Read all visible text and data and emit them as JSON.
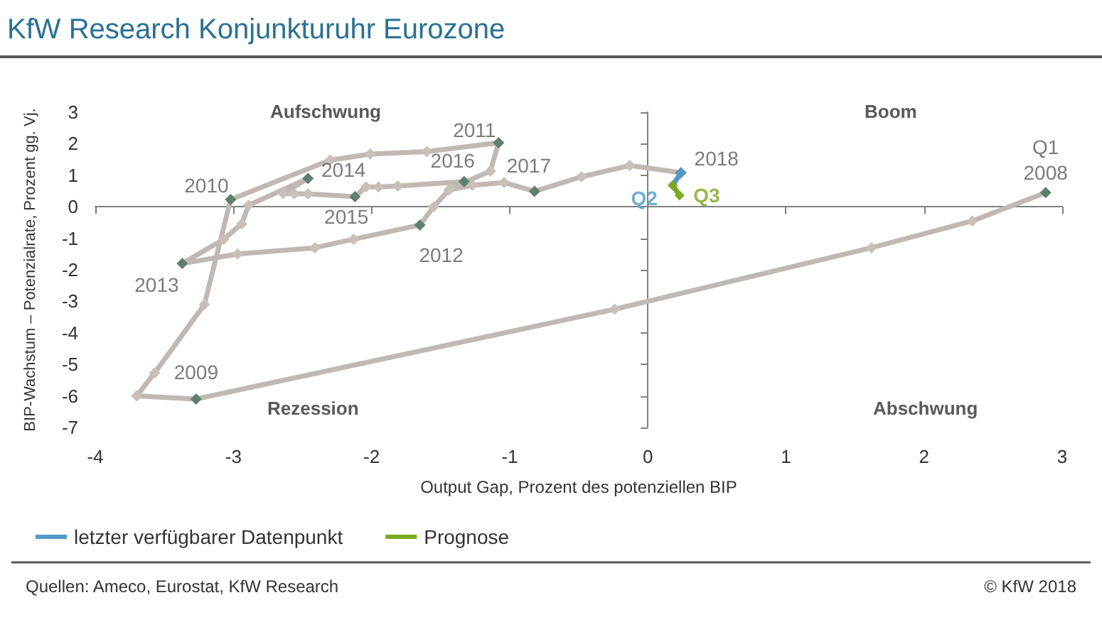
{
  "chart_data": {
    "type": "line",
    "title": "KfW Research Konjunkturuhr Eurozone",
    "xlabel": "Output Gap, Prozent des potenziellen BIP",
    "ylabel": "BIP-Wachstum – Potenzialrate, Prozent gg. Vj.",
    "xlim": [
      -4,
      3
    ],
    "xticks": [
      -4,
      -3,
      -2,
      -1,
      0,
      1,
      2,
      3
    ],
    "ylim": [
      -7,
      3
    ],
    "yticks": [
      -7,
      -6,
      -5,
      -4,
      -3,
      -2,
      -1,
      0,
      1,
      2,
      3
    ],
    "legend": "bottom left",
    "marker": "diamond",
    "line_style": "solid",
    "series": [
      {
        "color": "#c0b9b3",
        "x": [
          2.88,
          2.35,
          1.62,
          -0.24,
          -3.27,
          -3.7,
          -3.57,
          -3.21,
          -3.02,
          -2.3,
          -2.01,
          -1.6,
          -1.08,
          -1.14,
          -1.43,
          -1.55,
          -1.65,
          -2.13,
          -2.41,
          -2.97,
          -3.37,
          -3.07,
          -2.94,
          -2.89,
          -2.46,
          -2.64,
          -2.56,
          -2.46,
          -2.12,
          -2.04,
          -1.95,
          -1.81,
          -1.33,
          -1.44,
          -1.27,
          -1.04,
          -0.82,
          -0.48,
          -0.13,
          0.24
        ],
        "values": [
          0.45,
          -0.45,
          -1.3,
          -3.25,
          -6.1,
          -6.0,
          -5.27,
          -3.1,
          0.23,
          1.48,
          1.67,
          1.75,
          2.03,
          1.13,
          0.58,
          0.0,
          -0.58,
          -1.03,
          -1.3,
          -1.5,
          -1.8,
          -1.03,
          -0.54,
          0.05,
          0.9,
          0.42,
          0.41,
          0.41,
          0.32,
          0.63,
          0.63,
          0.66,
          0.8,
          0.53,
          0.68,
          0.77,
          0.49,
          0.95,
          1.31,
          1.08
        ],
        "colors": [
          "#5e7f6f",
          "#c8c0b9",
          "#c8c0b9",
          "#c8c0b9",
          "#5e7f6f",
          "#c8c0b9",
          "#c8c0b9",
          "#c8c0b9",
          "#5e7f6f",
          "#c8c0b9",
          "#c8c0b9",
          "#c8c0b9",
          "#5e7f6f",
          "#c8c0b9",
          "#c8c0b9",
          "#c8c0b9",
          "#5e7f6f",
          "#c8c0b9",
          "#c8c0b9",
          "#c8c0b9",
          "#5e7f6f",
          "#c8c0b9",
          "#c8c0b9",
          "#c8c0b9",
          "#5e7f6f",
          "#c8c0b9",
          "#c8c0b9",
          "#c8c0b9",
          "#5e7f6f",
          "#c8c0b9",
          "#c8c0b9",
          "#c8c0b9",
          "#5e7f6f",
          "#c8c0b9",
          "#c8c0b9",
          "#c8c0b9",
          "#5e7f6f",
          "#c8c0b9",
          "#c8c0b9",
          "#5e7f6f"
        ]
      },
      {
        "name": "letzter verfügbarer Datenpunkt",
        "color": "#4f9ac6",
        "x": [
          0.24,
          0.18
        ],
        "values": [
          1.08,
          0.68
        ]
      },
      {
        "name": "Prognose",
        "color": "#7aaa1e",
        "x": [
          0.18,
          0.23
        ],
        "values": [
          0.68,
          0.36
        ]
      }
    ],
    "annotations": [
      "Aufschwung",
      "Boom",
      "Rezession",
      "Abschwung",
      {
        "text": "Q1\n2008",
        "x": 2.88,
        "y": 0.45
      },
      {
        "text": "2009",
        "x": -3.27,
        "y": -6.1
      },
      {
        "text": "2010",
        "x": -3.02,
        "y": 0.23
      },
      {
        "text": "2011",
        "x": -1.08,
        "y": 2.03
      },
      {
        "text": "2012",
        "x": -1.65,
        "y": -0.58
      },
      {
        "text": "2013",
        "x": -3.37,
        "y": -1.8
      },
      {
        "text": "2014",
        "x": -2.46,
        "y": 0.9
      },
      {
        "text": "2015",
        "x": -2.12,
        "y": 0.32
      },
      {
        "text": "2016",
        "x": -1.33,
        "y": 0.8
      },
      {
        "text": "2017",
        "x": -0.82,
        "y": 0.49
      },
      {
        "text": "2018",
        "x": 0.24,
        "y": 1.08
      },
      {
        "text": "Q2",
        "x": 0.18,
        "y": 0.68
      },
      {
        "text": "Q3",
        "x": 0.23,
        "y": 0.36
      },
      "Quellen: Ameco, Eurostat, KfW Research",
      "© KfW 2018"
    ]
  }
}
